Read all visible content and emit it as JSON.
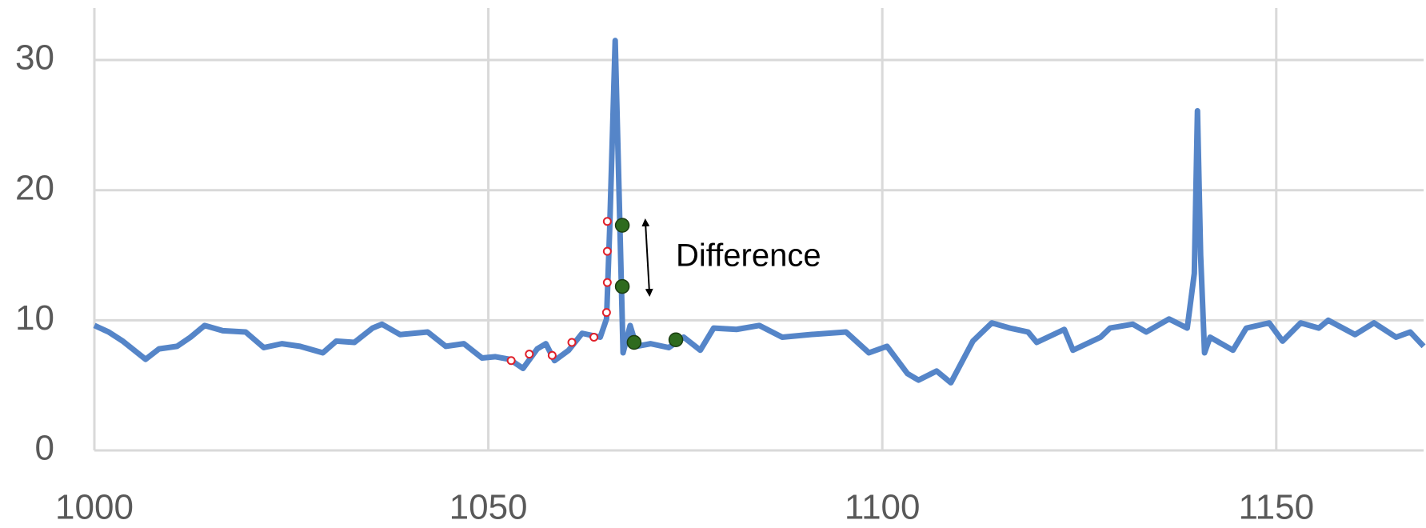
{
  "chart_data": {
    "type": "line",
    "xlim": [
      1000,
      1168.7
    ],
    "xticks": [
      1000,
      1050,
      1100,
      1150
    ],
    "ylim": [
      0,
      34
    ],
    "yticks": [
      0,
      10,
      20,
      30
    ],
    "grid": true,
    "annotation": "Difference",
    "series": [
      {
        "type": "line",
        "color": "#5585c8",
        "x": [
          1000,
          1001.8,
          1003.6,
          1006.5,
          1008.2,
          1010.5,
          1012.2,
          1014,
          1016.3,
          1019.2,
          1021.5,
          1023.8,
          1026.1,
          1029,
          1030.7,
          1033,
          1035.3,
          1036.5,
          1038.8,
          1042.3,
          1044.6,
          1046.9,
          1049.2,
          1050.9,
          1052.7,
          1054.4,
          1056.2,
          1057.3,
          1058.4,
          1060.2,
          1061.9,
          1064.2,
          1065,
          1065.4,
          1066.1,
          1066.5,
          1067.1,
          1068,
          1068.8,
          1070.6,
          1072.9,
          1074.8,
          1076.9,
          1078.6,
          1081.5,
          1084.4,
          1087.3,
          1090.8,
          1095.4,
          1098.3,
          1100.6,
          1103.2,
          1104.6,
          1106.9,
          1108.7,
          1111.5,
          1113.9,
          1116.2,
          1118.5,
          1119.6,
          1123.1,
          1124.2,
          1127.7,
          1128.9,
          1131.8,
          1133.5,
          1136.4,
          1138.7,
          1139.6,
          1140,
          1140.4,
          1140.9,
          1141.6,
          1144.5,
          1146.2,
          1149.1,
          1150.8,
          1153.1,
          1155.4,
          1156.6,
          1160,
          1162.4,
          1165.2,
          1167,
          1168.7
        ],
        "values": [
          9.6,
          9.1,
          8.4,
          7.0,
          7.8,
          8.0,
          8.7,
          9.6,
          9.2,
          9.1,
          7.9,
          8.2,
          8.0,
          7.5,
          8.4,
          8.3,
          9.4,
          9.7,
          8.9,
          9.1,
          8.0,
          8.2,
          7.1,
          7.2,
          7.0,
          6.3,
          7.8,
          8.2,
          6.9,
          7.7,
          9.0,
          8.7,
          10.1,
          17,
          31.5,
          22,
          7.5,
          9.6,
          8.0,
          8.2,
          7.9,
          8.7,
          7.7,
          9.4,
          9.3,
          9.6,
          8.7,
          8.9,
          9.1,
          7.5,
          8.0,
          5.9,
          5.4,
          6.1,
          5.2,
          8.4,
          9.8,
          9.4,
          9.1,
          8.3,
          9.3,
          7.7,
          8.7,
          9.4,
          9.7,
          9.1,
          10.1,
          9.4,
          13.6,
          26.1,
          15,
          7.5,
          8.7,
          7.7,
          9.4,
          9.8,
          8.4,
          9.8,
          9.4,
          10.0,
          8.9,
          9.8,
          8.7,
          9.1,
          8.0
        ]
      },
      {
        "type": "scatter",
        "color": "#e0202a",
        "marker": "hollow",
        "x": [
          1052.9,
          1055.2,
          1058.1,
          1060.6,
          1063.4,
          1065.0,
          1065.1,
          1065.1,
          1065.1
        ],
        "values": [
          6.9,
          7.4,
          7.3,
          8.3,
          8.7,
          10.6,
          12.9,
          15.3,
          17.6
        ]
      },
      {
        "type": "scatter",
        "color": "#2e6b1e",
        "marker": "filled",
        "x": [
          1067.0,
          1067.0,
          1068.5,
          1073.8
        ],
        "values": [
          17.3,
          12.6,
          8.3,
          8.5
        ]
      }
    ]
  }
}
